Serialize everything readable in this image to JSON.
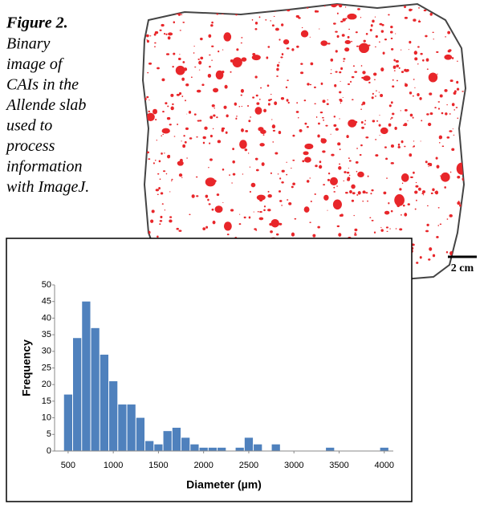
{
  "caption": {
    "label": "Figure 2.",
    "lines": [
      "Binary",
      "image of",
      "CAIs in the",
      "Allende slab",
      "used to",
      "process",
      "information",
      "with ImageJ."
    ]
  },
  "scale_bar": "2 cm",
  "chart_data": {
    "type": "histogram",
    "xlabel": "Diameter (µm)",
    "ylabel": "Frequency",
    "color": "#4f81bd",
    "bins": [
      450,
      550,
      650,
      750,
      850,
      950,
      1050,
      1150,
      1250,
      1350,
      1450,
      1550,
      1650,
      1750,
      1850,
      1950,
      2050,
      2150,
      2250,
      2350,
      2450,
      2550,
      2650,
      2750,
      2850,
      2950,
      3050,
      3150,
      3250,
      3350,
      3450,
      3550,
      3650,
      3750,
      3850,
      3950,
      4050
    ],
    "values": [
      17,
      34,
      45,
      37,
      29,
      21,
      14,
      14,
      10,
      3,
      2,
      6,
      7,
      4,
      2,
      1,
      1,
      1,
      0,
      1,
      4,
      2,
      0,
      2,
      0,
      0,
      0,
      0,
      0,
      1,
      0,
      0,
      0,
      0,
      0,
      1
    ],
    "xlim": [
      350,
      4100
    ],
    "xticks": [
      500,
      1000,
      1500,
      2000,
      2500,
      3000,
      3500,
      4000
    ],
    "ylim": [
      0,
      50
    ],
    "yticks": [
      0,
      5,
      10,
      15,
      20,
      25,
      30,
      35,
      40,
      45,
      50
    ]
  }
}
